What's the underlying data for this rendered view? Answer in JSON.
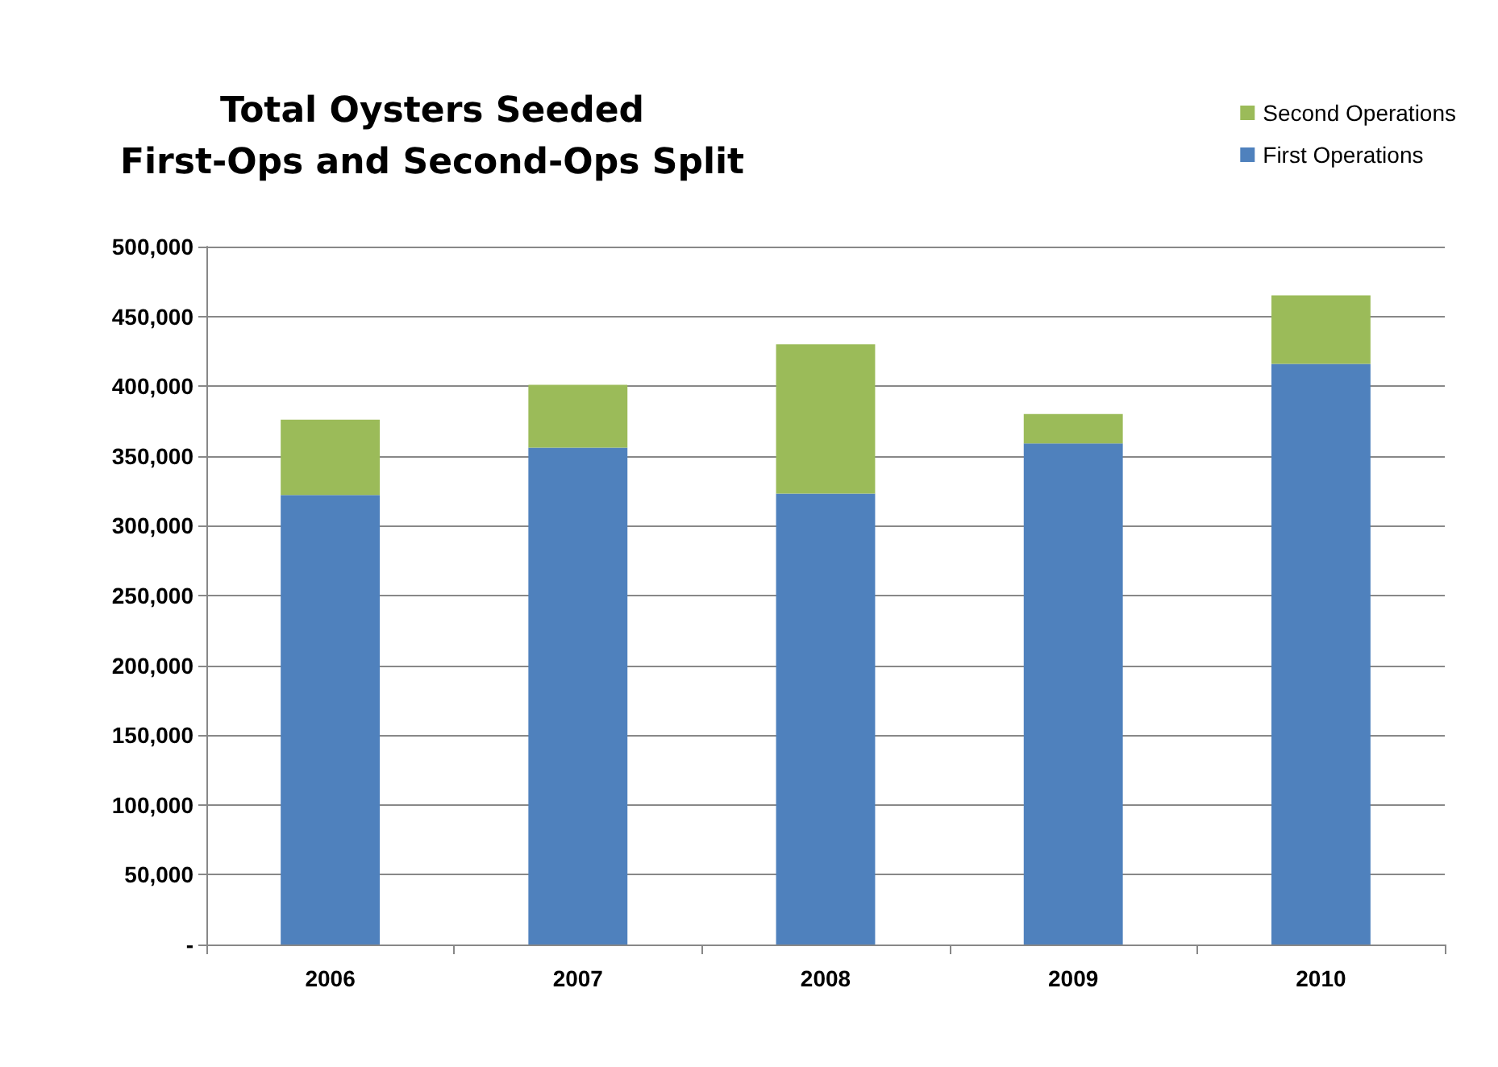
{
  "chart_data": {
    "type": "bar",
    "title": "Total Oysters Seeded\nFirst-Ops and Second-Ops Split",
    "categories": [
      "2006",
      "2007",
      "2008",
      "2009",
      "2010"
    ],
    "stacked": true,
    "series": [
      {
        "name": "First Operations",
        "color": "#4f81bd",
        "values": [
          322000,
          356000,
          323000,
          359000,
          416000
        ]
      },
      {
        "name": "Second Operations",
        "color": "#9bbb59",
        "values": [
          54000,
          45000,
          107000,
          21000,
          49000
        ]
      }
    ],
    "ylim": [
      0,
      500000
    ],
    "yticks": [
      {
        "value": 0,
        "label": "-"
      },
      {
        "value": 50000,
        "label": "50,000"
      },
      {
        "value": 100000,
        "label": "100,000"
      },
      {
        "value": 150000,
        "label": "150,000"
      },
      {
        "value": 200000,
        "label": "200,000"
      },
      {
        "value": 250000,
        "label": "250,000"
      },
      {
        "value": 300000,
        "label": "300,000"
      },
      {
        "value": 350000,
        "label": "350,000"
      },
      {
        "value": 400000,
        "label": "400,000"
      },
      {
        "value": 450000,
        "label": "450,000"
      },
      {
        "value": 500000,
        "label": "500,000"
      }
    ],
    "grid": "y",
    "legend": "top right"
  }
}
